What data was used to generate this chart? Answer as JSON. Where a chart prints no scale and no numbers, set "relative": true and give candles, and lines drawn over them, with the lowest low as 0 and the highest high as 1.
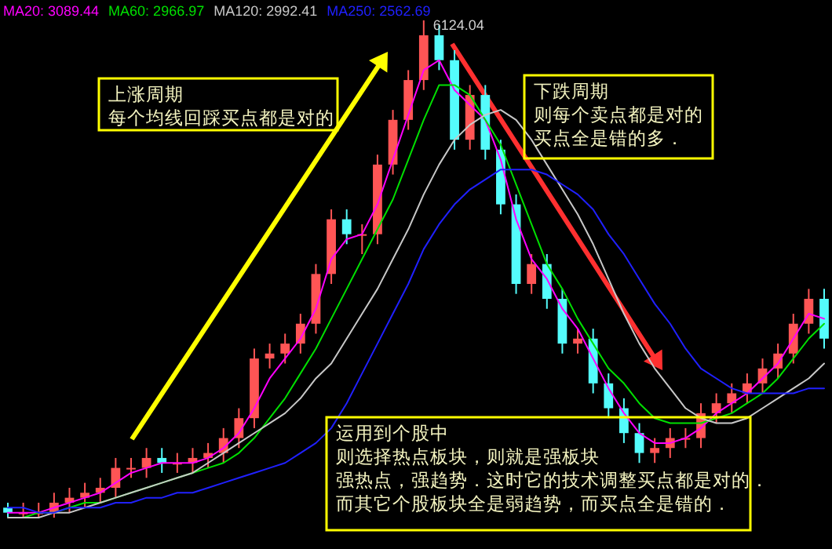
{
  "chart_data": {
    "type": "candlestick",
    "relative": true,
    "legend": "top left",
    "categories": [
      null,
      null,
      null,
      null,
      null,
      null,
      null,
      null,
      null,
      null,
      null,
      null,
      null,
      null,
      null,
      null,
      null,
      null,
      null,
      null,
      null,
      null,
      null,
      null,
      null,
      null,
      null,
      null,
      null,
      null,
      null,
      null,
      null,
      null,
      null,
      null,
      null,
      null,
      null,
      null,
      null,
      null,
      null,
      null,
      null,
      null,
      null,
      null,
      null,
      null,
      null,
      null,
      null,
      null
    ],
    "ohlc": [
      [
        0.02,
        0.03,
        0.0,
        0.01
      ],
      [
        0.01,
        0.03,
        0.0,
        0.01
      ],
      [
        0.01,
        0.03,
        0.0,
        0.01
      ],
      [
        0.01,
        0.05,
        0.0,
        0.03
      ],
      [
        0.03,
        0.06,
        0.01,
        0.04
      ],
      [
        0.04,
        0.07,
        0.02,
        0.05
      ],
      [
        0.05,
        0.08,
        0.03,
        0.06
      ],
      [
        0.06,
        0.12,
        0.04,
        0.1
      ],
      [
        0.1,
        0.12,
        0.08,
        0.1
      ],
      [
        0.1,
        0.14,
        0.08,
        0.12
      ],
      [
        0.12,
        0.14,
        0.09,
        0.11
      ],
      [
        0.11,
        0.13,
        0.09,
        0.11
      ],
      [
        0.11,
        0.14,
        0.09,
        0.12
      ],
      [
        0.12,
        0.15,
        0.1,
        0.13
      ],
      [
        0.13,
        0.18,
        0.11,
        0.16
      ],
      [
        0.16,
        0.22,
        0.14,
        0.2
      ],
      [
        0.2,
        0.34,
        0.18,
        0.32
      ],
      [
        0.32,
        0.35,
        0.3,
        0.33
      ],
      [
        0.33,
        0.37,
        0.31,
        0.35
      ],
      [
        0.35,
        0.41,
        0.33,
        0.39
      ],
      [
        0.39,
        0.51,
        0.37,
        0.49
      ],
      [
        0.49,
        0.62,
        0.47,
        0.6
      ],
      [
        0.6,
        0.62,
        0.55,
        0.57
      ],
      [
        0.57,
        0.59,
        0.53,
        0.57
      ],
      [
        0.57,
        0.73,
        0.55,
        0.71
      ],
      [
        0.71,
        0.82,
        0.69,
        0.8
      ],
      [
        0.8,
        0.9,
        0.78,
        0.88
      ],
      [
        0.88,
        1.0,
        0.86,
        0.97
      ],
      [
        0.97,
        0.99,
        0.9,
        0.92
      ],
      [
        0.92,
        0.94,
        0.74,
        0.76
      ],
      [
        0.76,
        0.87,
        0.74,
        0.85
      ],
      [
        0.85,
        0.87,
        0.72,
        0.74
      ],
      [
        0.74,
        0.76,
        0.61,
        0.63
      ],
      [
        0.63,
        0.65,
        0.45,
        0.47
      ],
      [
        0.47,
        0.53,
        0.45,
        0.51
      ],
      [
        0.51,
        0.53,
        0.42,
        0.44
      ],
      [
        0.44,
        0.46,
        0.33,
        0.35
      ],
      [
        0.35,
        0.38,
        0.33,
        0.36
      ],
      [
        0.36,
        0.38,
        0.25,
        0.27
      ],
      [
        0.27,
        0.29,
        0.2,
        0.22
      ],
      [
        0.22,
        0.24,
        0.15,
        0.17
      ],
      [
        0.17,
        0.19,
        0.11,
        0.13
      ],
      [
        0.13,
        0.16,
        0.11,
        0.14
      ],
      [
        0.14,
        0.18,
        0.12,
        0.16
      ],
      [
        0.16,
        0.18,
        0.14,
        0.16
      ],
      [
        0.16,
        0.23,
        0.14,
        0.21
      ],
      [
        0.21,
        0.25,
        0.19,
        0.23
      ],
      [
        0.23,
        0.27,
        0.21,
        0.25
      ],
      [
        0.25,
        0.29,
        0.23,
        0.27
      ],
      [
        0.27,
        0.32,
        0.25,
        0.3
      ],
      [
        0.3,
        0.35,
        0.28,
        0.33
      ],
      [
        0.33,
        0.41,
        0.31,
        0.39
      ],
      [
        0.39,
        0.46,
        0.37,
        0.44
      ],
      [
        0.44,
        0.46,
        0.34,
        0.36
      ]
    ],
    "colors": [
      "#54fcfc",
      "#ff5555",
      "#ff5555",
      "#ff5555",
      "#ff5555",
      "#ff5555",
      "#ff5555",
      "#ff5555",
      "#ff5555",
      "#ff5555",
      "#54fcfc",
      "#ff5555",
      "#ff5555",
      "#ff5555",
      "#ff5555",
      "#ff5555",
      "#ff5555",
      "#ff5555",
      "#ff5555",
      "#ff5555",
      "#ff5555",
      "#ff5555",
      "#54fcfc",
      "#ff5555",
      "#ff5555",
      "#ff5555",
      "#ff5555",
      "#ff5555",
      "#54fcfc",
      "#54fcfc",
      "#ff5555",
      "#54fcfc",
      "#54fcfc",
      "#54fcfc",
      "#ff5555",
      "#54fcfc",
      "#54fcfc",
      "#ff5555",
      "#54fcfc",
      "#54fcfc",
      "#54fcfc",
      "#54fcfc",
      "#ff5555",
      "#ff5555",
      "#ff5555",
      "#ff5555",
      "#ff5555",
      "#ff5555",
      "#ff5555",
      "#ff5555",
      "#ff5555",
      "#ff5555",
      "#ff5555",
      "#54fcfc"
    ],
    "series": [
      {
        "name": "MA20: 3089.44",
        "type": "line",
        "color": "#ff00ff",
        "values": [
          0.01,
          0.01,
          0.01,
          0.02,
          0.03,
          0.04,
          0.05,
          0.07,
          0.09,
          0.1,
          0.11,
          0.11,
          0.11,
          0.12,
          0.14,
          0.17,
          0.22,
          0.28,
          0.32,
          0.36,
          0.42,
          0.52,
          0.56,
          0.57,
          0.63,
          0.72,
          0.81,
          0.9,
          0.92,
          0.86,
          0.83,
          0.8,
          0.72,
          0.6,
          0.52,
          0.48,
          0.42,
          0.38,
          0.32,
          0.26,
          0.21,
          0.17,
          0.15,
          0.15,
          0.16,
          0.18,
          0.21,
          0.23,
          0.25,
          0.28,
          0.31,
          0.36,
          0.41,
          0.4
        ]
      },
      {
        "name": "MA60: 2966.97",
        "type": "line",
        "color": "#00e000",
        "values": [
          0.0,
          0.0,
          0.01,
          0.01,
          0.02,
          0.03,
          0.03,
          0.04,
          0.05,
          0.06,
          0.07,
          0.08,
          0.09,
          0.1,
          0.11,
          0.13,
          0.16,
          0.2,
          0.24,
          0.29,
          0.34,
          0.4,
          0.46,
          0.52,
          0.58,
          0.64,
          0.72,
          0.8,
          0.87,
          0.87,
          0.85,
          0.8,
          0.75,
          0.67,
          0.59,
          0.51,
          0.46,
          0.4,
          0.35,
          0.3,
          0.27,
          0.23,
          0.2,
          0.19,
          0.19,
          0.19,
          0.2,
          0.21,
          0.23,
          0.25,
          0.28,
          0.32,
          0.36,
          0.39
        ]
      },
      {
        "name": "MA120: 2992.41",
        "type": "line",
        "color": "#c8c8c8",
        "values": [
          0.0,
          0.0,
          0.0,
          0.01,
          0.01,
          0.02,
          0.03,
          0.04,
          0.05,
          0.06,
          0.07,
          0.08,
          0.09,
          0.11,
          0.13,
          0.15,
          0.17,
          0.19,
          0.21,
          0.24,
          0.28,
          0.31,
          0.36,
          0.41,
          0.46,
          0.52,
          0.58,
          0.65,
          0.71,
          0.76,
          0.79,
          0.81,
          0.82,
          0.8,
          0.76,
          0.71,
          0.66,
          0.61,
          0.55,
          0.48,
          0.41,
          0.35,
          0.3,
          0.26,
          0.22,
          0.2,
          0.19,
          0.19,
          0.2,
          0.22,
          0.24,
          0.26,
          0.28,
          0.31
        ]
      },
      {
        "name": "MA250: 2562.69",
        "type": "line",
        "color": "#2020ff",
        "values": [
          0.02,
          0.02,
          0.01,
          0.01,
          0.02,
          0.02,
          0.02,
          0.03,
          0.03,
          0.04,
          0.04,
          0.05,
          0.05,
          0.06,
          0.07,
          0.08,
          0.09,
          0.1,
          0.11,
          0.13,
          0.15,
          0.18,
          0.23,
          0.29,
          0.35,
          0.41,
          0.47,
          0.54,
          0.59,
          0.63,
          0.66,
          0.68,
          0.7,
          0.7,
          0.7,
          0.69,
          0.67,
          0.65,
          0.62,
          0.57,
          0.53,
          0.48,
          0.43,
          0.39,
          0.34,
          0.3,
          0.28,
          0.26,
          0.25,
          0.25,
          0.25,
          0.25,
          0.26,
          0.26
        ]
      }
    ],
    "annotations": [
      "6124.04",
      "上涨周期",
      "每个均线回踩买点都是对的",
      "下跌周期",
      "则每个卖点都是对的",
      "买点全是错的多．",
      "运用到个股中",
      "则选择热点板块，则就是强板块",
      "强热点，强趋势．这时它的技术调整买点都是对的．",
      "而其它个股板块全是弱趋势，而买点全是错的．"
    ]
  }
}
